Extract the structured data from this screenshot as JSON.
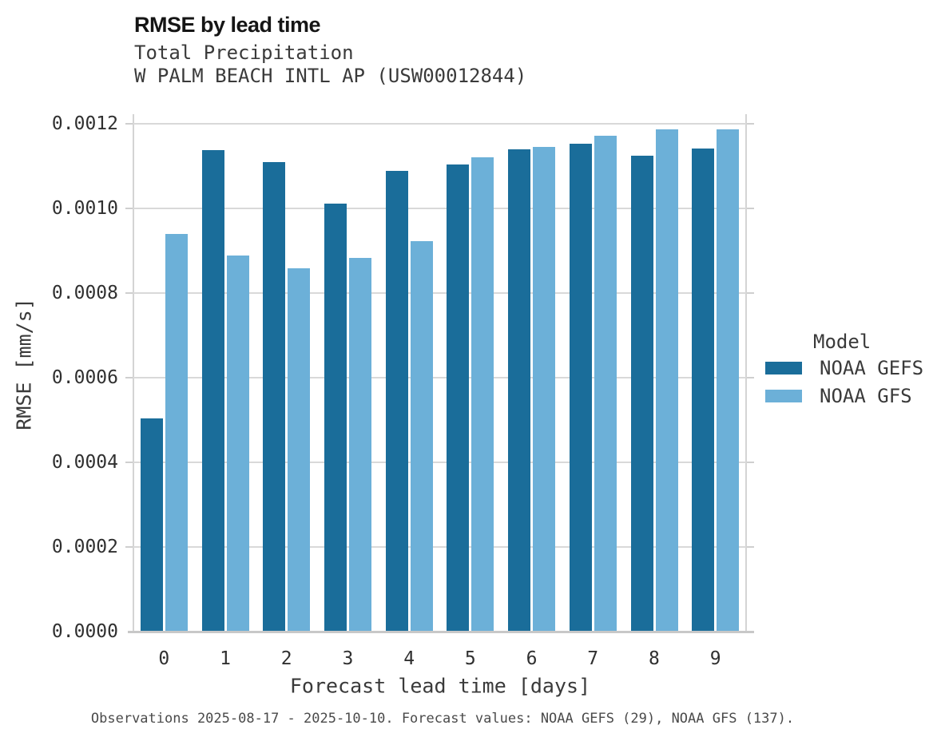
{
  "chart_data": {
    "type": "bar",
    "title": "RMSE by lead time",
    "subtitle1": "Total Precipitation",
    "subtitle2": "W PALM BEACH INTL AP (USW00012844)",
    "xlabel": "Forecast lead time [days]",
    "ylabel": "RMSE [mm/s]",
    "categories": [
      "0",
      "1",
      "2",
      "3",
      "4",
      "5",
      "6",
      "7",
      "8",
      "9"
    ],
    "series": [
      {
        "name": "NOAA GEFS",
        "color": "#1a6d9a",
        "values": [
          0.000503,
          0.001138,
          0.00111,
          0.001012,
          0.001088,
          0.001103,
          0.001139,
          0.001152,
          0.001124,
          0.001141
        ]
      },
      {
        "name": "NOAA GFS",
        "color": "#6cb0d8",
        "values": [
          0.00094,
          0.000889,
          0.000859,
          0.000884,
          0.000922,
          0.001121,
          0.001146,
          0.001171,
          0.001186,
          0.001186
        ]
      }
    ],
    "ylim": [
      0,
      0.0012
    ],
    "yticks": [
      0,
      0.0002,
      0.0004,
      0.0006,
      0.0008,
      0.001,
      0.0012
    ],
    "ytick_labels": [
      "0.0000",
      "0.0002",
      "0.0004",
      "0.0006",
      "0.0008",
      "0.0010",
      "0.0012"
    ],
    "grid": true,
    "legend_title": "Model",
    "legend_position": "right-middle"
  },
  "footer": {
    "caption": "Observations 2025-08-17 - 2025-10-10. Forecast values: NOAA GEFS (29), NOAA GFS (137)."
  },
  "colors": {
    "gefs": "#1a6d9a",
    "gfs": "#6cb0d8",
    "gridline": "#d9d9d9",
    "axis_line": "#c8c8c8",
    "title_text": "#151515",
    "body_text": "#3a3a3a",
    "caption_text": "#4a4a4a"
  }
}
